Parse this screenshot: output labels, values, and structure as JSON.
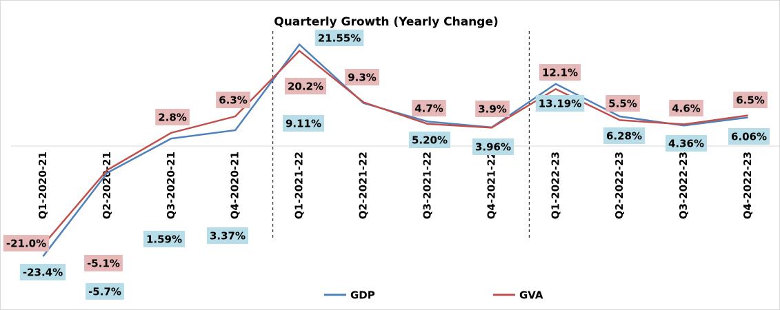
{
  "chart_data": {
    "type": "line",
    "title": "Quarterly Growth (Yearly Change)",
    "categories": [
      "Q1-2020-21",
      "Q2-2020-21",
      "Q3-2020-21",
      "Q4-2020-21",
      "Q1-2021-22",
      "Q2-2021-22",
      "Q3-2021-22",
      "Q4-2021-22",
      "Q1-2022-23",
      "Q2-2022-23",
      "Q3-2022-23",
      "Q4-2022-23"
    ],
    "series": [
      {
        "name": "GDP",
        "color": "#4f81bd",
        "values": [
          -23.4,
          -5.7,
          1.59,
          3.37,
          21.55,
          9.11,
          5.2,
          3.96,
          13.19,
          6.28,
          4.36,
          6.06
        ],
        "value_labels": [
          "-23.4%",
          "-5.7%",
          "1.59%",
          "3.37%",
          "21.55%",
          "9.11%",
          "5.20%",
          "3.96%",
          "13.19%",
          "6.28%",
          "4.36%",
          "6.06%"
        ],
        "label_color": "#b7dde8"
      },
      {
        "name": "GVA",
        "color": "#c0504d",
        "values": [
          -21.0,
          -5.1,
          2.8,
          6.3,
          20.2,
          9.3,
          4.7,
          3.9,
          12.1,
          5.5,
          4.6,
          6.5
        ],
        "value_labels": [
          "-21.0%",
          "-5.1%",
          "2.8%",
          "6.3%",
          "20.2%",
          "9.3%",
          "4.7%",
          "3.9%",
          "12.1%",
          "5.5%",
          "4.6%",
          "6.5%"
        ],
        "label_color": "#e6b9b8"
      }
    ],
    "ylim": [
      -25,
      25
    ],
    "legend": "bottom"
  }
}
